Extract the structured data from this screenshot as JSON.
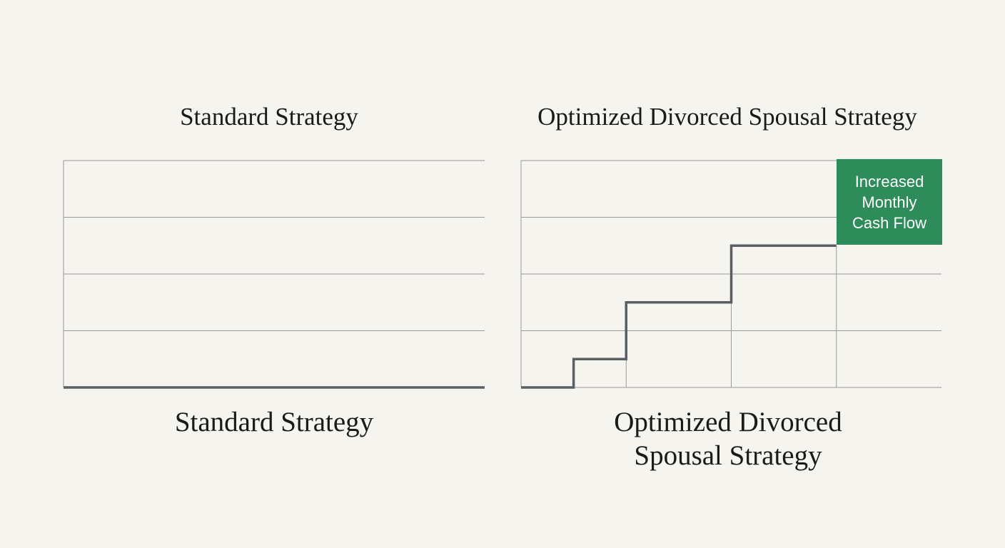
{
  "chart_data": [
    {
      "type": "line",
      "title": "Standard Strategy",
      "caption": "Standard Strategy",
      "x": [
        0,
        4
      ],
      "values": [
        0,
        0
      ],
      "color": "#5a5f63",
      "xlim": [
        0,
        4
      ],
      "ylim": [
        0,
        4
      ],
      "yticks": [
        0,
        1,
        2,
        3,
        4
      ],
      "grid": true
    },
    {
      "type": "line",
      "title": "Optimized Divorced Spousal Strategy",
      "caption": "Optimized Divorced Spousal Strategy",
      "x": [
        0,
        0.5,
        0.5,
        1,
        1,
        2,
        2,
        3
      ],
      "values": [
        0,
        0,
        0.5,
        0.5,
        1.5,
        1.5,
        2.5,
        2.5
      ],
      "color": "#5a5f63",
      "xlim": [
        0,
        4
      ],
      "ylim": [
        0,
        4
      ],
      "yticks": [
        0,
        1,
        2,
        3,
        4
      ],
      "xticks": [
        1,
        2,
        3
      ],
      "grid": true,
      "annotation": "Increased Monthly Cash Flow",
      "annotation_color": "#2e8b5a"
    }
  ]
}
